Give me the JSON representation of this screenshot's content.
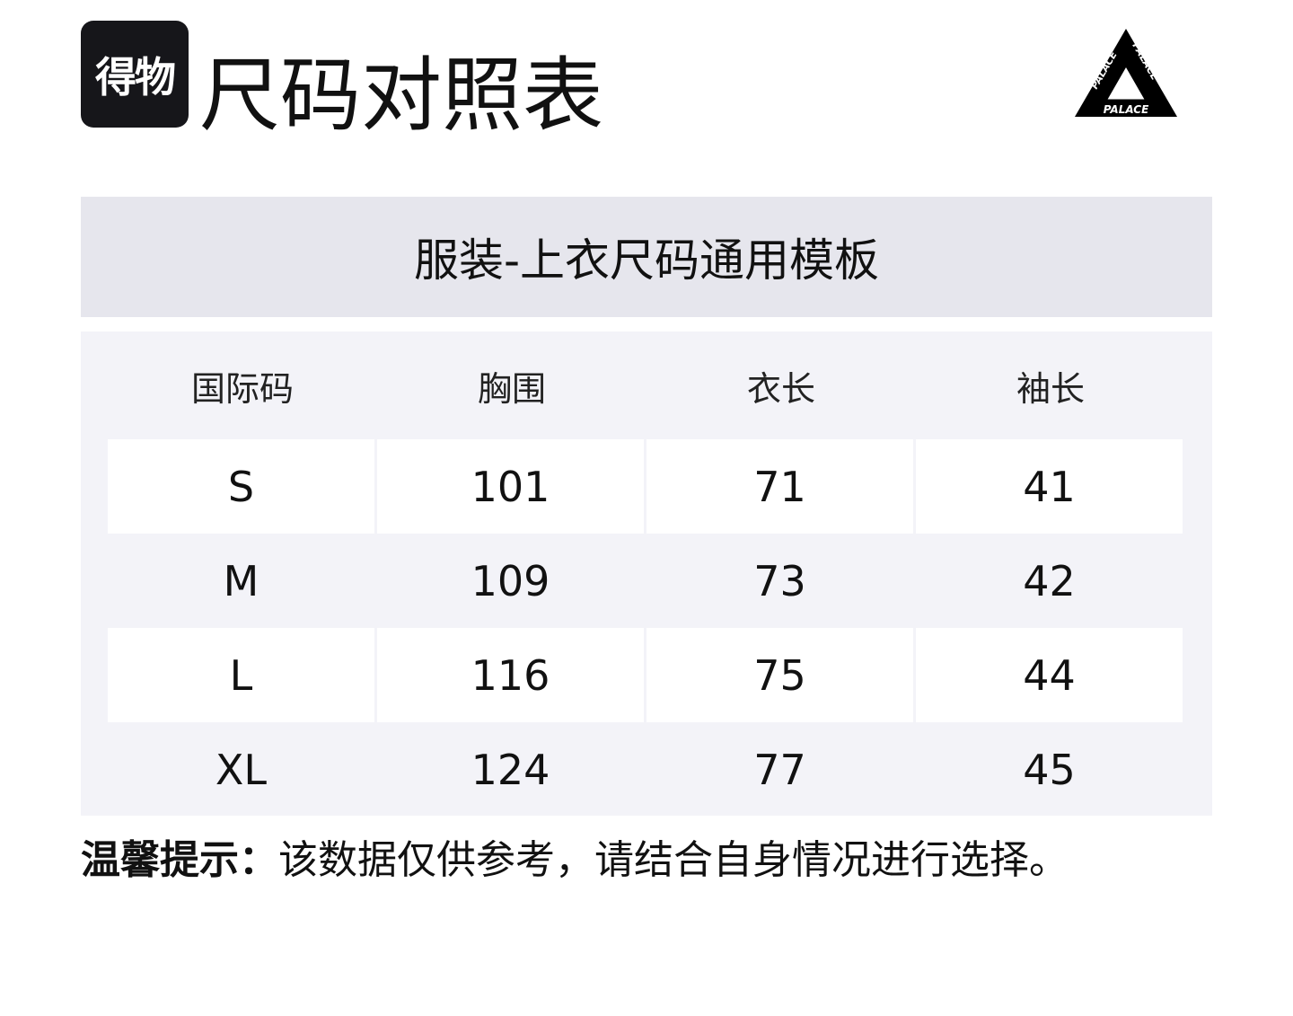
{
  "header": {
    "logo_text": "得物",
    "title": "尺码对照表",
    "brand_logo": "PALACE"
  },
  "table": {
    "caption": "服装-上衣尺码通用模板",
    "columns": [
      "国际码",
      "胸围",
      "衣长",
      "袖长"
    ],
    "rows": [
      [
        "S",
        "101",
        "71",
        "41"
      ],
      [
        "M",
        "109",
        "73",
        "42"
      ],
      [
        "L",
        "116",
        "75",
        "44"
      ],
      [
        "XL",
        "124",
        "77",
        "45"
      ]
    ]
  },
  "note": {
    "label": "温馨提示：",
    "text": "该数据仅供参考，请结合自身情况进行选择。"
  }
}
